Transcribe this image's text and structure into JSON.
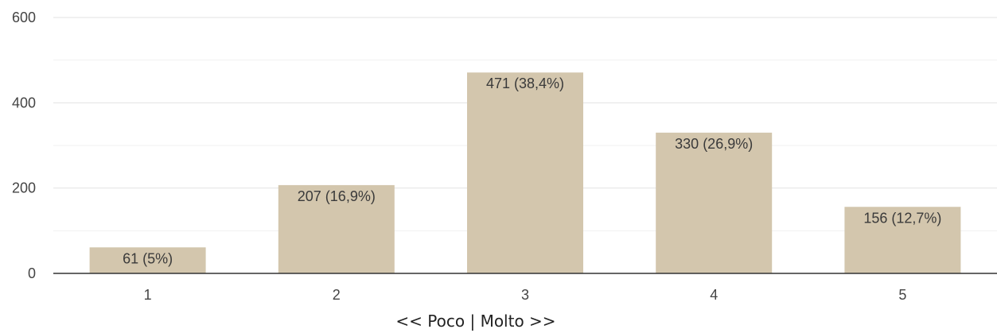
{
  "chart_data": {
    "type": "bar",
    "categories": [
      "1",
      "2",
      "3",
      "4",
      "5"
    ],
    "values": [
      61,
      207,
      471,
      330,
      156
    ],
    "data_labels": [
      "61 (5%)",
      "207 (16,9%)",
      "471 (38,4%)",
      "330 (26,9%)",
      "156 (12,7%)"
    ],
    "y_ticks": [
      "0",
      "200",
      "400",
      "600"
    ],
    "ylim": [
      0,
      600
    ],
    "xlabel": "<< Poco | Molto >>",
    "bar_color": "#d3c6ad",
    "grid": true
  }
}
